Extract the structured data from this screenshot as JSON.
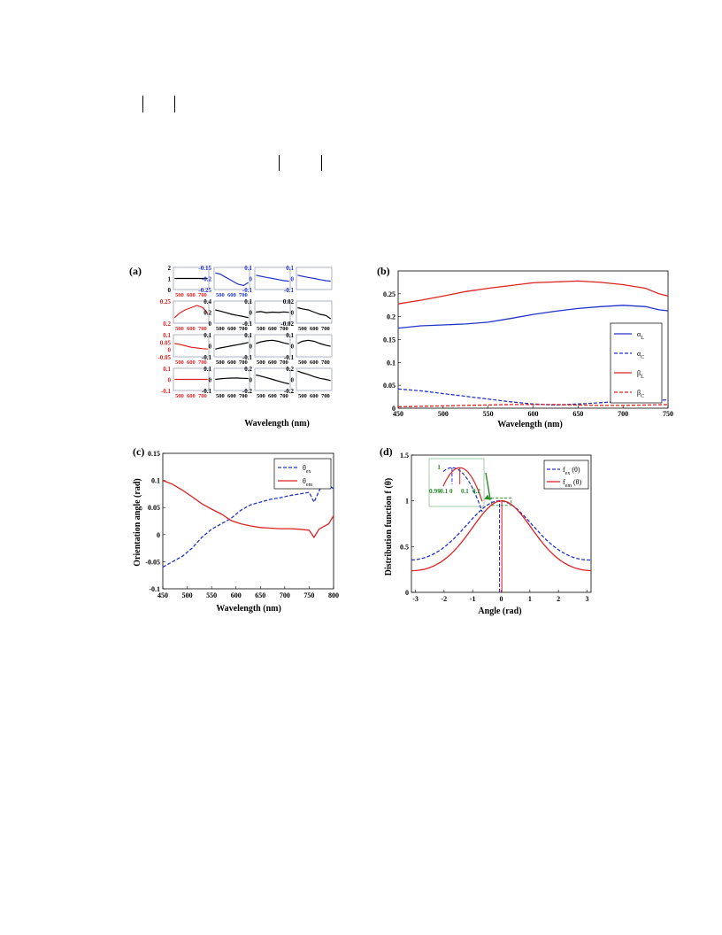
{
  "chart_data": [
    {
      "id": "a",
      "panel_label": "(a)",
      "type": "line",
      "xlabel": "Wavelength (nm)",
      "grid_x_ticks": [
        "500",
        "600",
        "700"
      ],
      "cells": [
        {
          "color": "#000000",
          "ylim": [
            0,
            2
          ],
          "yticks": [
            "2",
            "1",
            "0"
          ],
          "x": [
            460,
            500,
            550,
            600,
            650,
            700,
            740
          ],
          "y": [
            1,
            1,
            1,
            1,
            1,
            1,
            1
          ],
          "show_xticks": true
        },
        {
          "color": "#2233cc",
          "ylim": [
            -0.25,
            -0.15
          ],
          "yticks": [
            "-0.15",
            "-0.2",
            "-0.25"
          ],
          "x": [
            460,
            500,
            550,
            600,
            650,
            700,
            740
          ],
          "y": [
            -0.175,
            -0.18,
            -0.195,
            -0.21,
            -0.225,
            -0.232,
            -0.218
          ],
          "show_xticks": true,
          "tick_color": "#2233cc"
        },
        {
          "color": "#2233cc",
          "ylim": [
            -0.1,
            0.1
          ],
          "yticks": [
            "0.1",
            "0",
            "-0.1"
          ],
          "x": [
            460,
            500,
            550,
            600,
            650,
            700,
            740
          ],
          "y": [
            0.03,
            0.02,
            0.01,
            0.0,
            -0.01,
            -0.02,
            -0.025
          ],
          "tick_color": "#2233cc"
        },
        {
          "color": "#2233cc",
          "ylim": [
            -0.1,
            0.1
          ],
          "yticks": [
            "0.1",
            "0",
            "-0.1"
          ],
          "x": [
            460,
            500,
            550,
            600,
            650,
            700,
            740
          ],
          "y": [
            0.03,
            0.02,
            0.01,
            0.0,
            -0.01,
            -0.02,
            -0.025
          ],
          "tick_color": "#2233cc"
        },
        {
          "color": "#dd2222",
          "ylim": [
            0.2,
            0.3
          ],
          "yticks": [
            "0.25",
            "0.2"
          ],
          "x": [
            460,
            500,
            550,
            600,
            650,
            700,
            740
          ],
          "y": [
            0.225,
            0.245,
            0.26,
            0.27,
            0.28,
            0.27,
            0.245
          ],
          "show_xticks": true,
          "tick_color": "#dd2222"
        },
        {
          "color": "#000000",
          "ylim": [
            0,
            0.4
          ],
          "yticks": [
            "0.4",
            "0.2",
            "0"
          ],
          "x": [
            460,
            500,
            550,
            600,
            650,
            700,
            740
          ],
          "y": [
            0.24,
            0.22,
            0.19,
            0.16,
            0.14,
            0.12,
            0.1
          ],
          "show_xticks": true
        },
        {
          "color": "#000000",
          "ylim": [
            -0.1,
            0.1
          ],
          "yticks": [
            "0.1",
            "0",
            "-0.1"
          ],
          "x": [
            460,
            500,
            550,
            600,
            650,
            700,
            740
          ],
          "y": [
            0.0,
            0.005,
            -0.005,
            0.0,
            -0.003,
            0.002,
            -0.002
          ],
          "show_xticks": true
        },
        {
          "color": "#000000",
          "ylim": [
            -0.02,
            0.02
          ],
          "yticks": [
            "0.02",
            "0",
            "-0.02"
          ],
          "x": [
            460,
            500,
            550,
            600,
            650,
            700,
            740
          ],
          "y": [
            0.008,
            0.006,
            0.004,
            0.0,
            -0.004,
            -0.006,
            -0.012
          ],
          "show_xticks": true
        },
        {
          "color": "#dd2222",
          "ylim": [
            -0.05,
            0.1
          ],
          "yticks": [
            "0.1",
            "0.05",
            "0",
            "-0.05"
          ],
          "x": [
            460,
            500,
            550,
            600,
            650,
            700,
            740
          ],
          "y": [
            0.04,
            0.035,
            0.025,
            0.015,
            0.01,
            0.005,
            0.003
          ],
          "show_xticks": true,
          "tick_color": "#dd2222"
        },
        {
          "color": "#000000",
          "ylim": [
            -0.1,
            0.1
          ],
          "yticks": [
            "0.1",
            "0",
            "-0.1"
          ],
          "x": [
            460,
            500,
            550,
            600,
            650,
            700,
            740
          ],
          "y": [
            -0.03,
            -0.02,
            -0.01,
            0.0,
            0.01,
            0.02,
            0.03
          ],
          "show_xticks": true
        },
        {
          "color": "#000000",
          "ylim": [
            -0.1,
            0.1
          ],
          "yticks": [
            "0.1",
            "0",
            "-0.1"
          ],
          "x": [
            460,
            500,
            550,
            600,
            650,
            700,
            740
          ],
          "y": [
            0.02,
            0.035,
            0.045,
            0.05,
            0.04,
            0.025,
            0.015
          ],
          "show_xticks": true
        },
        {
          "color": "#000000",
          "ylim": [
            -0.1,
            0.1
          ],
          "yticks": [
            "0.1",
            "0",
            "-0.1"
          ],
          "x": [
            460,
            500,
            550,
            600,
            650,
            700,
            740
          ],
          "y": [
            0.02,
            0.04,
            0.05,
            0.04,
            0.02,
            0.005,
            -0.005
          ],
          "show_xticks": true
        },
        {
          "color": "#dd2222",
          "ylim": [
            -0.1,
            0.1
          ],
          "yticks": [
            "0.1",
            "0",
            "-0.1"
          ],
          "x": [
            460,
            500,
            550,
            600,
            650,
            700,
            740
          ],
          "y": [
            0.0,
            0.0,
            0.0,
            0.0,
            0.0,
            0.0,
            0.0
          ],
          "show_xticks": true,
          "tick_color": "#dd2222"
        },
        {
          "color": "#000000",
          "ylim": [
            -0.1,
            0.1
          ],
          "yticks": [
            "0.1",
            "0",
            "-0.1"
          ],
          "x": [
            460,
            500,
            550,
            600,
            650,
            700,
            740
          ],
          "y": [
            0.0,
            0.005,
            0.01,
            0.012,
            0.012,
            0.01,
            0.008
          ],
          "show_xticks": true
        },
        {
          "color": "#000000",
          "ylim": [
            -0.2,
            0.2
          ],
          "yticks": [
            "0.2",
            "0",
            "-0.2"
          ],
          "x": [
            460,
            500,
            550,
            600,
            650,
            700,
            740
          ],
          "y": [
            0.08,
            0.06,
            0.03,
            0.0,
            -0.03,
            -0.06,
            -0.08
          ],
          "show_xticks": true
        },
        {
          "color": "#000000",
          "ylim": [
            -0.2,
            0.2
          ],
          "yticks": [
            "0.2",
            "0",
            "-0.2"
          ],
          "x": [
            460,
            500,
            550,
            600,
            650,
            700,
            740
          ],
          "y": [
            0.15,
            0.12,
            0.09,
            0.05,
            0.02,
            0.0,
            -0.02
          ],
          "show_xticks": true
        }
      ]
    },
    {
      "id": "b",
      "panel_label": "(b)",
      "type": "line",
      "xlabel": "Wavelength (nm)",
      "ylabel": "",
      "xlim": [
        450,
        750
      ],
      "ylim": [
        0,
        0.3
      ],
      "xticks": [
        450,
        500,
        550,
        600,
        650,
        700,
        750
      ],
      "yticks": [
        0,
        0.05,
        0.1,
        0.15,
        0.2,
        0.25
      ],
      "ytick_labels": [
        "0",
        "0.05",
        "0.1",
        "0.15",
        "0.2",
        "0.25"
      ],
      "legend_position": "bottom-right",
      "series": [
        {
          "name": "α",
          "subscript": "L",
          "color": "#2233cc",
          "dash": "solid",
          "x": [
            450,
            475,
            500,
            525,
            550,
            575,
            600,
            625,
            650,
            675,
            700,
            725,
            740,
            750
          ],
          "y": [
            0.175,
            0.18,
            0.182,
            0.184,
            0.188,
            0.196,
            0.205,
            0.212,
            0.218,
            0.222,
            0.225,
            0.222,
            0.215,
            0.213
          ]
        },
        {
          "name": "α",
          "subscript": "C",
          "color": "#2233cc",
          "dash": "dashed",
          "x": [
            450,
            475,
            500,
            525,
            550,
            575,
            600,
            625,
            650,
            675,
            700,
            725,
            750
          ],
          "y": [
            0.042,
            0.038,
            0.032,
            0.026,
            0.02,
            0.014,
            0.009,
            0.007,
            0.009,
            0.012,
            0.015,
            0.017,
            0.018
          ]
        },
        {
          "name": "β",
          "subscript": "L",
          "color": "#dd2222",
          "dash": "solid",
          "x": [
            450,
            475,
            500,
            525,
            550,
            575,
            600,
            625,
            650,
            675,
            700,
            725,
            740,
            750
          ],
          "y": [
            0.228,
            0.236,
            0.245,
            0.255,
            0.262,
            0.268,
            0.274,
            0.276,
            0.278,
            0.275,
            0.27,
            0.262,
            0.25,
            0.245
          ]
        },
        {
          "name": "β",
          "subscript": "C",
          "color": "#dd2222",
          "dash": "dashed",
          "x": [
            450,
            475,
            500,
            525,
            550,
            575,
            600,
            625,
            650,
            675,
            700,
            725,
            750
          ],
          "y": [
            0.003,
            0.004,
            0.005,
            0.006,
            0.007,
            0.008,
            0.008,
            0.008,
            0.007,
            0.006,
            0.006,
            0.007,
            0.008
          ]
        }
      ]
    },
    {
      "id": "c",
      "panel_label": "(c)",
      "type": "line",
      "xlabel": "Wavelength (nm)",
      "ylabel": "Orientation angle (rad)",
      "xlim": [
        450,
        800
      ],
      "ylim": [
        -0.1,
        0.15
      ],
      "xticks": [
        450,
        500,
        550,
        600,
        650,
        700,
        750,
        800
      ],
      "yticks": [
        -0.1,
        -0.05,
        0,
        0.05,
        0.1,
        0.15
      ],
      "ytick_labels": [
        "-0.1",
        "-0.05",
        "0",
        "0.05",
        "0.1",
        "0.15"
      ],
      "legend_position": "top-right",
      "series": [
        {
          "name": "θ",
          "subscript": "ex",
          "color": "#2233cc",
          "dash": "dashed",
          "x": [
            450,
            470,
            490,
            510,
            530,
            550,
            570,
            590,
            610,
            630,
            650,
            670,
            690,
            710,
            730,
            750,
            760,
            770,
            780,
            790,
            800
          ],
          "y": [
            -0.06,
            -0.05,
            -0.04,
            -0.025,
            -0.005,
            0.01,
            0.02,
            0.03,
            0.045,
            0.055,
            0.06,
            0.065,
            0.068,
            0.072,
            0.075,
            0.078,
            0.06,
            0.08,
            0.1,
            0.09,
            0.085
          ]
        },
        {
          "name": "θ",
          "subscript": "em",
          "color": "#dd2222",
          "dash": "solid",
          "x": [
            450,
            470,
            490,
            510,
            530,
            550,
            570,
            590,
            610,
            630,
            650,
            670,
            690,
            710,
            730,
            750,
            760,
            770,
            780,
            790,
            800
          ],
          "y": [
            0.1,
            0.093,
            0.082,
            0.07,
            0.057,
            0.047,
            0.038,
            0.026,
            0.02,
            0.016,
            0.013,
            0.012,
            0.011,
            0.011,
            0.01,
            0.008,
            -0.005,
            0.01,
            0.015,
            0.02,
            0.035
          ]
        }
      ]
    },
    {
      "id": "d",
      "panel_label": "(d)",
      "type": "line",
      "xlabel": "Angle (rad)",
      "ylabel": "Distribution function f (θ)",
      "xlim": [
        -3.14,
        3.14
      ],
      "ylim": [
        0,
        1.5
      ],
      "xticks": [
        -3,
        -2,
        -1,
        0,
        1,
        2,
        3
      ],
      "yticks": [
        0,
        0.5,
        1,
        1.5
      ],
      "ytick_labels": [
        "0",
        "0.5",
        "1",
        "1.5"
      ],
      "legend_position": "top-right",
      "series": [
        {
          "name": "f",
          "subscript": "ex",
          "suffix": " (θ)",
          "color": "#2233cc",
          "dash": "dashed",
          "width_param": 0.52,
          "center": -0.06
        },
        {
          "name": "f",
          "subscript": "em",
          "suffix": " (θ)",
          "color": "#dd2222",
          "dash": "solid",
          "width_param": 0.72,
          "center": 0.02
        }
      ],
      "inset": {
        "xlim": [
          -0.15,
          0.25
        ],
        "ylim": [
          0.985,
          1.005
        ],
        "xtick_labels": [
          "-0.1",
          "0",
          "0.1",
          "0.2"
        ],
        "ytick_labels": [
          "1",
          "0.99"
        ],
        "tick_color": "#2a8a2a"
      }
    }
  ]
}
